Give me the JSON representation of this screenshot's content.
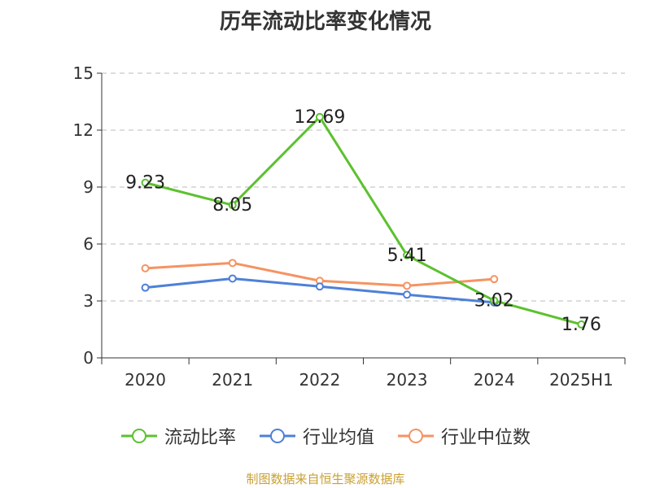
{
  "chart_data": {
    "type": "line",
    "title": "历年流动比率变化情况",
    "categories": [
      "2020",
      "2021",
      "2022",
      "2023",
      "2024",
      "2025H1"
    ],
    "ylim": [
      0,
      15
    ],
    "yticks": [
      "0",
      "3",
      "6",
      "9",
      "12",
      "15"
    ],
    "ytick_values": [
      0,
      3,
      6,
      9,
      12,
      15
    ],
    "grid": true,
    "legend_position": "bottom",
    "series": [
      {
        "name": "流动比率",
        "color": "#5cc12f",
        "values": [
          9.23,
          8.05,
          12.69,
          5.41,
          3.02,
          1.76
        ],
        "labels": [
          "9.23",
          "8.05",
          "12.69",
          "5.41",
          "3.02",
          "1.76"
        ]
      },
      {
        "name": "行业均值",
        "color": "#4e80d8",
        "values": [
          3.7,
          4.18,
          3.76,
          3.33,
          2.92,
          null
        ]
      },
      {
        "name": "行业中位数",
        "color": "#f59362",
        "values": [
          4.72,
          5.0,
          4.06,
          3.8,
          4.15,
          null
        ]
      }
    ]
  },
  "footer": {
    "source": "制图数据来自恒生聚源数据库"
  }
}
